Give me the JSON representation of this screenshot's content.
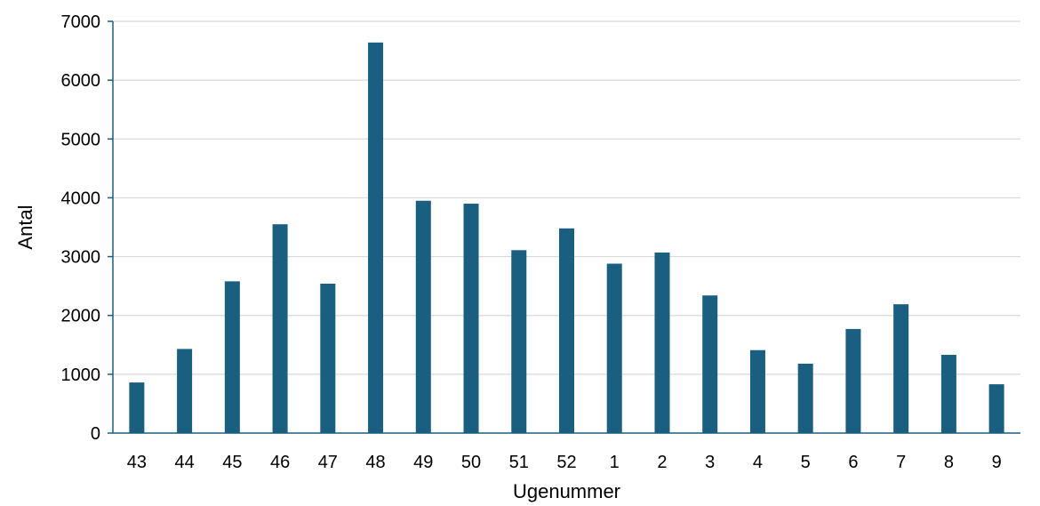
{
  "chart_data": {
    "type": "bar",
    "title": "",
    "xlabel": "Ugenummer",
    "ylabel": "Antal",
    "ylim": [
      0,
      7000
    ],
    "yticks": [
      0,
      1000,
      2000,
      3000,
      4000,
      5000,
      6000,
      7000
    ],
    "categories": [
      "43",
      "44",
      "45",
      "46",
      "47",
      "48",
      "49",
      "50",
      "51",
      "52",
      "1",
      "2",
      "3",
      "4",
      "5",
      "6",
      "7",
      "8",
      "9"
    ],
    "values": [
      860,
      1430,
      2580,
      3550,
      2540,
      6640,
      3950,
      3900,
      3110,
      3480,
      2880,
      3070,
      2340,
      1410,
      1180,
      1770,
      2190,
      1330,
      830
    ],
    "grid": true,
    "legend": "none",
    "colors": {
      "bar": "#1a5e80",
      "axis": "#1a5e80",
      "grid": "#d9d9d9"
    }
  }
}
